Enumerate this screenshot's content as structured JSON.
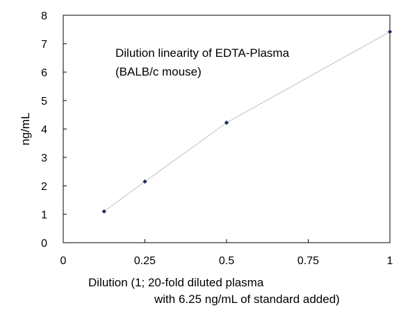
{
  "chart_data": {
    "type": "scatter",
    "title": "",
    "annotation": {
      "lines": [
        "Dilution linearity of EDTA-Plasma",
        "(BALB/c mouse)"
      ]
    },
    "xlabel_lines": [
      "Dilution (1; 20-fold diluted plasma",
      "with 6.25 ng/mL of standard added)"
    ],
    "ylabel": "ng/mL",
    "xlim": [
      0,
      1
    ],
    "ylim": [
      0,
      8
    ],
    "x_ticks": [
      0,
      0.25,
      0.5,
      0.75,
      1
    ],
    "x_tick_labels": [
      "0",
      "0.25",
      "0.5",
      "0.75",
      "1"
    ],
    "y_ticks": [
      0,
      1,
      2,
      3,
      4,
      5,
      6,
      7,
      8
    ],
    "y_tick_labels": [
      "0",
      "1",
      "2",
      "3",
      "4",
      "5",
      "6",
      "7",
      "8"
    ],
    "grid": false,
    "legend": "none",
    "series": [
      {
        "x": [
          0.125,
          0.25,
          0.5,
          1
        ],
        "y": [
          1.1,
          2.15,
          4.22,
          7.42
        ],
        "marker": "diamond",
        "marker_color": "#1f2f66",
        "line_color": "#bfbfbf"
      }
    ]
  }
}
